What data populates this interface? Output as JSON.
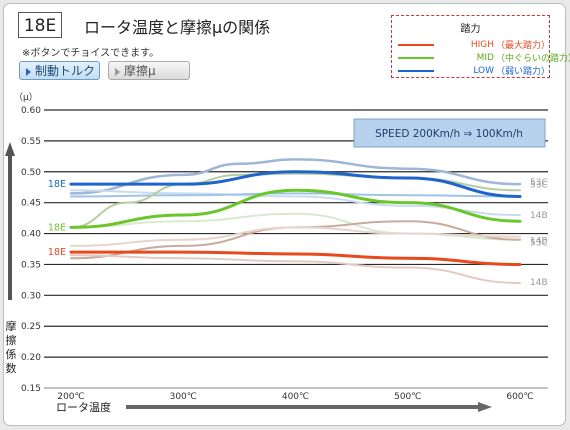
{
  "header": {
    "code": "18E",
    "title": "ロータ温度と摩擦μの関係",
    "note": "※ボタンでチョイスできます。"
  },
  "buttons": {
    "torque": "制動トルク",
    "mu": "摩擦μ"
  },
  "legend": {
    "title": "踏力",
    "items": [
      {
        "label": "HIGH",
        "sub": "（最大踏力）",
        "color": "#e84a1e"
      },
      {
        "label": "MID",
        "sub": "（中ぐらいの踏力）",
        "color": "#6ac62a"
      },
      {
        "label": "LOW",
        "sub": "（弱い踏力）",
        "color": "#1e64cc"
      }
    ]
  },
  "chart_data": {
    "type": "line",
    "unit_label": "（μ）",
    "ylabel": "摩擦係数",
    "xlabel": "ロータ温度",
    "speed_label": "SPEED  200Km/h ⇒ 100Km/h",
    "x": [
      200,
      300,
      400,
      500,
      600
    ],
    "xticks": [
      "200℃",
      "300℃",
      "400℃",
      "500℃",
      "600℃"
    ],
    "ylim": [
      0.15,
      0.6
    ],
    "yticks": [
      "0.15",
      "0.20",
      "0.25",
      "0.30",
      "0.35",
      "0.40",
      "0.45",
      "0.50",
      "0.55",
      "0.60"
    ],
    "grid": true,
    "series": [
      {
        "color": "#9fb6d8",
        "width": 2.5,
        "end": "53C",
        "x": [
          200,
          300,
          350,
          400,
          500,
          600
        ],
        "values": [
          0.465,
          0.495,
          0.513,
          0.52,
          0.505,
          0.48
        ]
      },
      {
        "color": "#c8dcf0",
        "width": 2,
        "end": "14B",
        "x": [
          200,
          300,
          400,
          500,
          600
        ],
        "values": [
          0.47,
          0.465,
          0.46,
          0.445,
          0.43
        ]
      },
      {
        "color": "#9ec4e8",
        "width": 2,
        "end": "",
        "x": [
          200,
          300,
          400,
          500,
          600
        ],
        "values": [
          0.46,
          0.462,
          0.465,
          0.462,
          0.46
        ]
      },
      {
        "color": "#b6cda0",
        "width": 2,
        "end": "53C",
        "x": [
          200,
          250,
          300,
          350,
          400,
          500,
          600
        ],
        "values": [
          0.41,
          0.45,
          0.48,
          0.495,
          0.497,
          0.49,
          0.47
        ]
      },
      {
        "color": "#dae9cf",
        "width": 2,
        "end": "14B",
        "x": [
          200,
          300,
          400,
          500,
          600
        ],
        "values": [
          0.41,
          0.42,
          0.432,
          0.4,
          0.39
        ]
      },
      {
        "color": "#c9ab9e",
        "width": 2,
        "end": "53C",
        "x": [
          200,
          300,
          400,
          500,
          600
        ],
        "values": [
          0.36,
          0.38,
          0.41,
          0.42,
          0.39
        ]
      },
      {
        "color": "#e8d4cc",
        "width": 2,
        "end": "",
        "x": [
          200,
          300,
          400,
          500,
          600
        ],
        "values": [
          0.38,
          0.39,
          0.41,
          0.4,
          0.395
        ]
      },
      {
        "color": "#e3cac2",
        "width": 2,
        "end": "14B",
        "x": [
          200,
          300,
          400,
          500,
          600
        ],
        "values": [
          0.365,
          0.36,
          0.355,
          0.345,
          0.32
        ]
      },
      {
        "color": "#1e64cc",
        "width": 3,
        "end": "",
        "start": "18E",
        "x": [
          200,
          300,
          400,
          500,
          600
        ],
        "values": [
          0.48,
          0.48,
          0.5,
          0.49,
          0.46
        ]
      },
      {
        "color": "#6ac62a",
        "width": 3,
        "end": "",
        "start": "18E",
        "x": [
          200,
          300,
          400,
          500,
          600
        ],
        "values": [
          0.41,
          0.43,
          0.47,
          0.45,
          0.42
        ]
      },
      {
        "color": "#e84a1e",
        "width": 3,
        "end": "",
        "start": "18E",
        "x": [
          200,
          300,
          400,
          500,
          600
        ],
        "values": [
          0.37,
          0.37,
          0.367,
          0.36,
          0.35
        ]
      }
    ]
  }
}
